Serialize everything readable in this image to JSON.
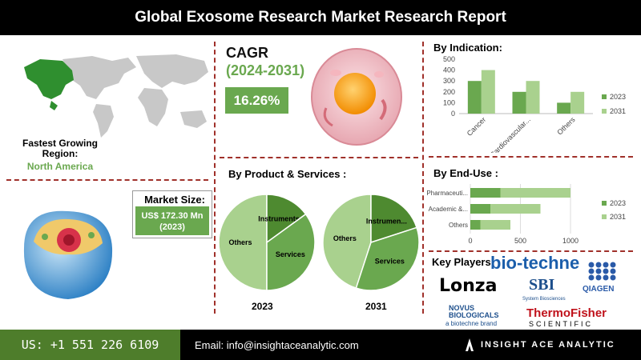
{
  "header": {
    "title": "Global Exosome Research Market Research Report"
  },
  "region": {
    "label": "Fastest Growing Region:",
    "value": "North America"
  },
  "cagr": {
    "title": "CAGR",
    "period": "(2024-2031)",
    "value": "16.26%"
  },
  "market_size": {
    "label": "Market Size:",
    "value": "US$ 172.30 Mn (2023)"
  },
  "product": {
    "title": "By Product & Services :"
  },
  "indication": {
    "title": "By Indication:"
  },
  "enduse": {
    "title": "By End-Use :"
  },
  "key_players": {
    "label": "Key Players:",
    "logos": [
      "bio-techne",
      "Lonza",
      "SBI",
      "System Biosciences",
      "QIAGEN",
      "NOVUS BIOLOGICALS",
      "a biotechne brand",
      "ThermoFisher",
      "SCIENTIFIC"
    ]
  },
  "footer": {
    "phone": "US: +1 551 226 6109",
    "email": "Email: info@insightaceanalytic.com",
    "brand": "INSIGHT ACE ANALYTIC"
  },
  "colors": {
    "green_dark": "#4e8a30",
    "green": "#6aa84f",
    "green_light": "#a9d18e",
    "divider": "#a0302a"
  },
  "chart_data": [
    {
      "type": "bar",
      "title": "By Indication:",
      "categories": [
        "Cancer",
        "Cardiovascular...",
        "Others"
      ],
      "series": [
        {
          "name": "2023",
          "values": [
            300,
            200,
            100
          ]
        },
        {
          "name": "2031",
          "values": [
            400,
            300,
            200
          ]
        }
      ],
      "ylim": [
        0,
        500
      ],
      "yticks": [
        0,
        100,
        200,
        300,
        400,
        500
      ],
      "legend": "right"
    },
    {
      "type": "bar",
      "orientation": "horizontal",
      "title": "By End-Use :",
      "categories": [
        "Pharmaceuti...",
        "Academic &...",
        "Others"
      ],
      "series": [
        {
          "name": "2023",
          "values": [
            300,
            200,
            100
          ]
        },
        {
          "name": "2031",
          "values": [
            700,
            500,
            300
          ]
        }
      ],
      "xlim": [
        0,
        1000
      ],
      "xticks": [
        0,
        500,
        1000
      ],
      "legend": "right"
    },
    {
      "type": "pie",
      "title": "2023",
      "labels": [
        "Others",
        "Instruments",
        "Services"
      ],
      "values": [
        50,
        15,
        35
      ]
    },
    {
      "type": "pie",
      "title": "2031",
      "labels": [
        "Others",
        "Instrumen...",
        "Services"
      ],
      "values": [
        45,
        20,
        35
      ]
    }
  ]
}
